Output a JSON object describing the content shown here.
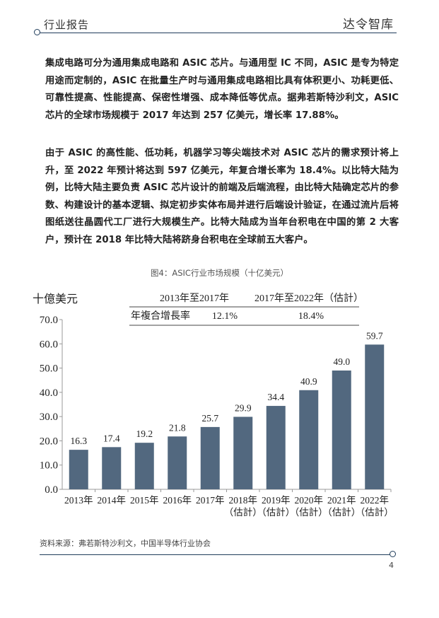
{
  "header": {
    "left": "行业报告",
    "right": "达令智库"
  },
  "paragraphs": [
    "集成电路可分为通用集成电路和 ASIC 芯片。与通用型 IC 不同，ASIC 是专为特定用途而定制的，ASIC 在批量生产时与通用集成电路相比具有体积更小、功耗更低、可靠性提高、性能提高、保密性增强、成本降低等优点。据弗若斯特沙利文，ASIC 芯片的全球市场规模于 2017 年达到 257 亿美元，增长率 17.88%。",
    "由于 ASIC 的高性能、低功耗，机器学习等尖端技术对 ASIC 芯片的需求预计将上升，至 2022 年预计将达到 597 亿美元，年复合增长率为 18.4%。以比特大陆为例，比特大陆主要负责 ASIC 芯片设计的前端及后端流程，由比特大陆确定芯片的参数、构建设计的基本逻辑、拟定初步实体布局并进行后端设计验证，在通过流片后将图纸送往晶圆代工厂进行大规模生产。比特大陆成为当年台积电在中国的第 2 大客户，预计在 2018 年比特大陆将跻身台积电在全球前五大客户。"
  ],
  "figure_caption": "图4：ASIC行业市场规模（十亿美元）",
  "chart_data": {
    "type": "bar",
    "ylabel": "十億美元",
    "ylim": [
      0,
      70
    ],
    "yticks": [
      "0.0",
      "10.0",
      "20.0",
      "30.0",
      "40.0",
      "50.0",
      "60.0",
      "70.0"
    ],
    "categories": [
      [
        "2013年"
      ],
      [
        "2014年"
      ],
      [
        "2015年"
      ],
      [
        "2016年"
      ],
      [
        "2017年"
      ],
      [
        "2018年",
        "（估計）"
      ],
      [
        "2019年",
        "（估計）"
      ],
      [
        "2020年",
        "（估計）"
      ],
      [
        "2021年",
        "（估計）"
      ],
      [
        "2022年",
        "（估計）"
      ]
    ],
    "values": [
      16.3,
      17.4,
      19.2,
      21.8,
      25.7,
      29.9,
      34.4,
      40.9,
      49.0,
      59.7
    ],
    "value_labels": [
      "16.3",
      "17.4",
      "19.2",
      "21.8",
      "25.7",
      "29.9",
      "34.4",
      "40.9",
      "49.0",
      "59.7"
    ],
    "bar_color": "#52687f",
    "cagr_table": {
      "periods": [
        "2013年至2017年",
        "2017年至2022年（估計）"
      ],
      "row_label": "年複合增長率",
      "rates": [
        "12.1%",
        "18.4%"
      ]
    }
  },
  "source": "资料来源：弗若斯特沙利文，中国半导体行业协会",
  "page_number": "4"
}
